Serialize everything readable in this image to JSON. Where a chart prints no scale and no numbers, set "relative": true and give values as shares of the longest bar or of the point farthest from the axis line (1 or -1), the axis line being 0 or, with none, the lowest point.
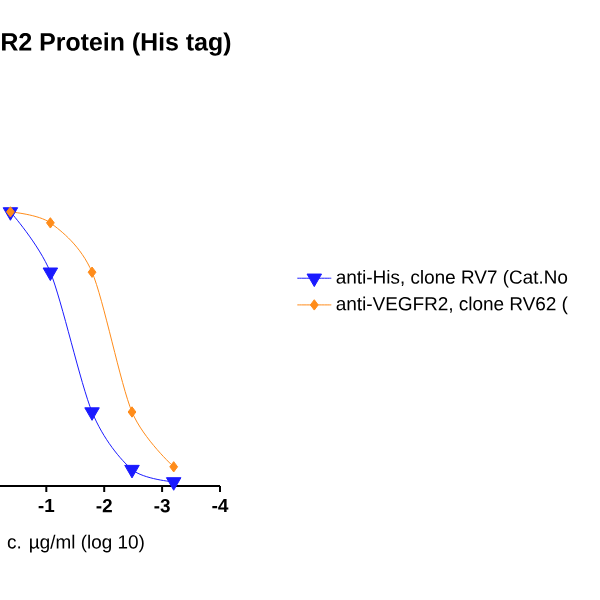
{
  "chart_data": {
    "type": "line",
    "title": "R2 Protein (His tag)",
    "xlabel": "c. µg/ml (log 10)",
    "xlim": [
      -0.2,
      -4
    ],
    "xticks": [
      -1,
      -2,
      -3,
      -4
    ],
    "relative": true,
    "legend": "right",
    "series": [
      {
        "name": "anti-His, clone RV7 (Cat.No",
        "color": "#1a1aff",
        "marker": "triangle",
        "x": [
          -0.38,
          -1.07,
          -1.79,
          -2.48,
          -3.2
        ],
        "values": [
          1.0,
          0.78,
          0.27,
          0.06,
          0.015
        ]
      },
      {
        "name": "anti-VEGFR2, clone RV62 (",
        "color": "#ff8c1a",
        "marker": "diamond",
        "x": [
          -0.38,
          -1.07,
          -1.79,
          -2.48,
          -3.2
        ],
        "values": [
          1.0,
          0.96,
          0.78,
          0.27,
          0.07
        ]
      }
    ]
  }
}
